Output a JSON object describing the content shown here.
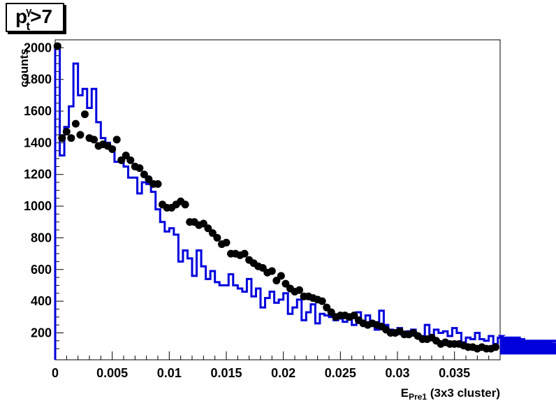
{
  "chart_data": {
    "type": "scatter",
    "title": {
      "base": "p",
      "sup": "γ",
      "sub": "t",
      "rest": ">7"
    },
    "xlabel": {
      "base": "E",
      "sub": "Pre1",
      "rest": " (3x3 cluster)"
    },
    "ylabel": "counts",
    "xlim": [
      0,
      0.039
    ],
    "ylim": [
      30,
      2050
    ],
    "x_ticks": [
      "0",
      "0.005",
      "0.01",
      "0.015",
      "0.02",
      "0.025",
      "0.03",
      "0.035"
    ],
    "x_tick_values": [
      0,
      0.005,
      0.01,
      0.015,
      0.02,
      0.025,
      0.03,
      0.035
    ],
    "y_ticks": [
      "200",
      "400",
      "600",
      "800",
      "1000",
      "1200",
      "1400",
      "1600",
      "1800",
      "2000"
    ],
    "y_tick_values": [
      200,
      400,
      600,
      800,
      1000,
      1200,
      1400,
      1600,
      1800,
      2000
    ],
    "grid": false,
    "series": [
      {
        "style": "markers",
        "color": "#000000",
        "x": [
          0.0002,
          0.0006,
          0.001,
          0.0014,
          0.0018,
          0.0022,
          0.0026,
          0.003,
          0.0034,
          0.0038,
          0.0042,
          0.0046,
          0.005,
          0.0054,
          0.0058,
          0.0062,
          0.0066,
          0.007,
          0.0074,
          0.0078,
          0.0082,
          0.0086,
          0.009,
          0.0094,
          0.0098,
          0.0102,
          0.0106,
          0.011,
          0.0114,
          0.0118,
          0.0122,
          0.0126,
          0.013,
          0.0134,
          0.0138,
          0.0142,
          0.0146,
          0.015,
          0.0154,
          0.0158,
          0.0162,
          0.0166,
          0.017,
          0.0174,
          0.0178,
          0.0182,
          0.0186,
          0.019,
          0.0194,
          0.0198,
          0.0202,
          0.0206,
          0.021,
          0.0214,
          0.0218,
          0.0222,
          0.0226,
          0.023,
          0.0234,
          0.0238,
          0.0242,
          0.0246,
          0.025,
          0.0254,
          0.0258,
          0.0262,
          0.0266,
          0.027,
          0.0274,
          0.0278,
          0.0282,
          0.0286,
          0.029,
          0.0294,
          0.0298,
          0.0302,
          0.0306,
          0.031,
          0.0314,
          0.0318,
          0.0322,
          0.0326,
          0.033,
          0.0334,
          0.0338,
          0.0342,
          0.0346,
          0.035,
          0.0354,
          0.0358,
          0.0362,
          0.0366,
          0.037,
          0.0374,
          0.0378,
          0.0382,
          0.0386
        ],
        "y": [
          2010,
          1430,
          1470,
          1430,
          1520,
          1450,
          1580,
          1430,
          1420,
          1380,
          1390,
          1380,
          1360,
          1420,
          1290,
          1320,
          1290,
          1250,
          1240,
          1200,
          1170,
          1140,
          1140,
          1010,
          990,
          990,
          1010,
          1030,
          1010,
          900,
          900,
          880,
          890,
          860,
          830,
          800,
          760,
          770,
          700,
          700,
          690,
          700,
          660,
          640,
          620,
          610,
          580,
          590,
          530,
          560,
          510,
          480,
          460,
          470,
          430,
          430,
          420,
          410,
          400,
          360,
          330,
          300,
          310,
          310,
          300,
          310,
          280,
          260,
          250,
          260,
          250,
          240,
          220,
          200,
          200,
          210,
          190,
          190,
          200,
          180,
          160,
          160,
          170,
          150,
          130,
          140,
          130,
          130,
          130,
          120,
          110,
          110,
          100,
          110,
          100,
          100,
          110
        ]
      },
      {
        "style": "step",
        "color": "#0000dd",
        "bin_width": 0.0004,
        "x_start": 0,
        "values": [
          2020,
          1320,
          1500,
          1630,
          1900,
          1700,
          1740,
          1620,
          1740,
          1530,
          1430,
          1400,
          1370,
          1280,
          1300,
          1250,
          1180,
          1180,
          1080,
          1150,
          1140,
          1090,
          980,
          900,
          840,
          860,
          820,
          650,
          720,
          670,
          560,
          720,
          620,
          540,
          590,
          520,
          500,
          500,
          570,
          500,
          480,
          460,
          540,
          430,
          480,
          360,
          420,
          460,
          390,
          410,
          450,
          320,
          360,
          410,
          280,
          330,
          380,
          260,
          320,
          310,
          300,
          280,
          290,
          270,
          300,
          250,
          330,
          260,
          310,
          270,
          220,
          340,
          250,
          220,
          190,
          230,
          200,
          210,
          220,
          170,
          180,
          250,
          180,
          220,
          200,
          210,
          180,
          230,
          200,
          140,
          170,
          160,
          200,
          160,
          150,
          180,
          130,
          170,
          180,
          130,
          160,
          110,
          170,
          160,
          130,
          110,
          130,
          140,
          120,
          110,
          120,
          120,
          150,
          110,
          120,
          110,
          100,
          120,
          130,
          100,
          90,
          110,
          120,
          100,
          90,
          110,
          120,
          100,
          80,
          110,
          110,
          90,
          70,
          100,
          120,
          90,
          100,
          80
        ]
      }
    ]
  }
}
